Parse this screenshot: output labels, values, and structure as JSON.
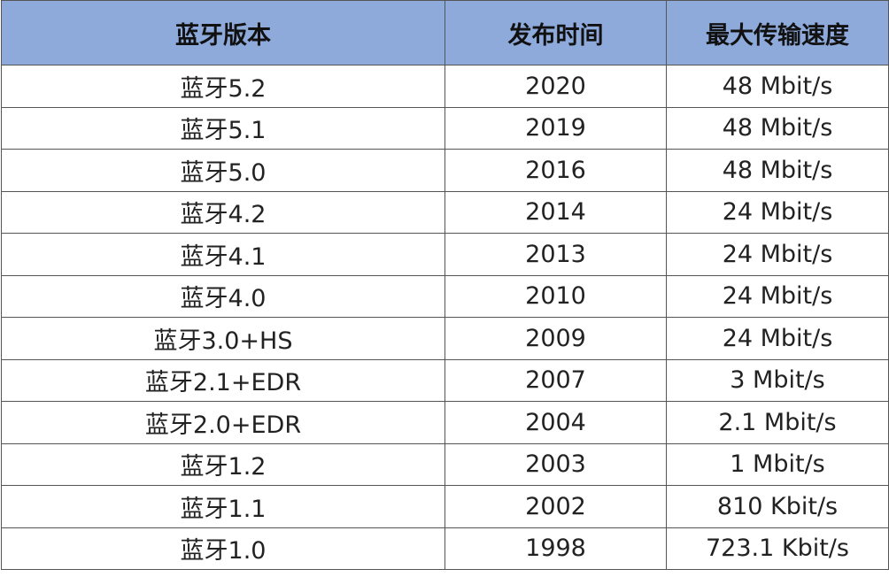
{
  "table": {
    "header": [
      "蓝牙版本",
      "发布时间",
      "最大传输速度"
    ],
    "rows": [
      [
        "蓝牙5.2",
        "2020",
        "48 Mbit/s"
      ],
      [
        "蓝牙5.1",
        "2019",
        "48 Mbit/s"
      ],
      [
        "蓝牙5.0",
        "2016",
        "48 Mbit/s"
      ],
      [
        "蓝牙4.2",
        "2014",
        "24 Mbit/s"
      ],
      [
        "蓝牙4.1",
        "2013",
        "24 Mbit/s"
      ],
      [
        "蓝牙4.0",
        "2010",
        "24 Mbit/s"
      ],
      [
        "蓝牙3.0+HS",
        "2009",
        "24 Mbit/s"
      ],
      [
        "蓝牙2.1+EDR",
        "2007",
        "3 Mbit/s"
      ],
      [
        "蓝牙2.0+EDR",
        "2004",
        "2.1 Mbit/s"
      ],
      [
        "蓝牙1.2",
        "2003",
        "1 Mbit/s"
      ],
      [
        "蓝牙1.1",
        "2002",
        "810 Kbit/s"
      ],
      [
        "蓝牙1.0",
        "1998",
        "723.1 Kbit/s"
      ]
    ]
  }
}
